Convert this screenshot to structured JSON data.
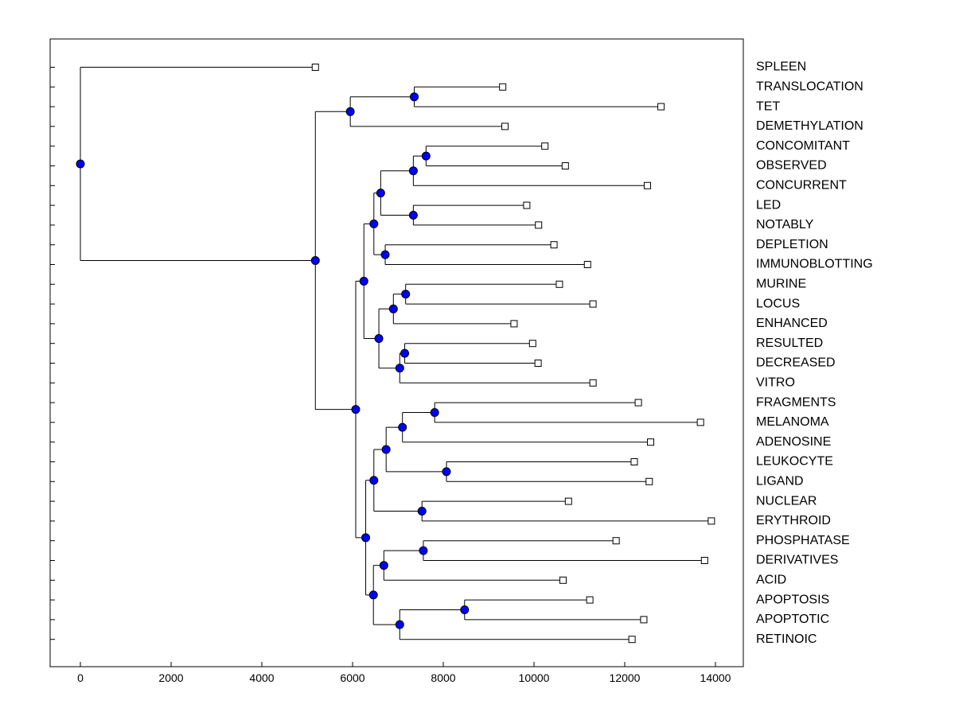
{
  "chart_data": {
    "type": "dendrogram",
    "title": "",
    "xlabel": "",
    "ylabel": "",
    "xlim": [
      -700,
      14700
    ],
    "x_ticks": [
      0,
      2000,
      4000,
      6000,
      8000,
      10000,
      12000,
      14000
    ],
    "x_tick_labels": [
      "0",
      "2000",
      "4000",
      "6000",
      "8000",
      "10000",
      "12000",
      "14000"
    ],
    "node_color": "#0000ff",
    "leaves": [
      {
        "label": "SPLEEN",
        "value": 5180
      },
      {
        "label": "TRANSLOCATION",
        "value": 9310
      },
      {
        "label": "TET",
        "value": 12800
      },
      {
        "label": "DEMETHYLATION",
        "value": 9360
      },
      {
        "label": "CONCOMITANT",
        "value": 10240
      },
      {
        "label": "OBSERVED",
        "value": 10690
      },
      {
        "label": "CONCURRENT",
        "value": 12500
      },
      {
        "label": "LED",
        "value": 9840
      },
      {
        "label": "NOTABLY",
        "value": 10100
      },
      {
        "label": "DEPLETION",
        "value": 10440
      },
      {
        "label": "IMMUNOBLOTTING",
        "value": 11180
      },
      {
        "label": "MURINE",
        "value": 10560
      },
      {
        "label": "LOCUS",
        "value": 11300
      },
      {
        "label": "ENHANCED",
        "value": 9560
      },
      {
        "label": "RESULTED",
        "value": 9970
      },
      {
        "label": "DECREASED",
        "value": 10090
      },
      {
        "label": "VITRO",
        "value": 11300
      },
      {
        "label": "FRAGMENTS",
        "value": 12300
      },
      {
        "label": "MELANOMA",
        "value": 13670
      },
      {
        "label": "ADENOSINE",
        "value": 12570
      },
      {
        "label": "LEUKOCYTE",
        "value": 12210
      },
      {
        "label": "LIGAND",
        "value": 12540
      },
      {
        "label": "NUCLEAR",
        "value": 10760
      },
      {
        "label": "ERYTHROID",
        "value": 13910
      },
      {
        "label": "PHOSPHATASE",
        "value": 11810
      },
      {
        "label": "DERIVATIVES",
        "value": 13760
      },
      {
        "label": "ACID",
        "value": 10640
      },
      {
        "label": "APOPTOSIS",
        "value": 11230
      },
      {
        "label": "APOPTOTIC",
        "value": 12420
      },
      {
        "label": "RETINOIC",
        "value": 12160
      }
    ],
    "merges": [
      {
        "id": "n1",
        "value": 7360,
        "children": [
          "TRANSLOCATION",
          "TET"
        ]
      },
      {
        "id": "n2",
        "value": 5950,
        "children": [
          "n1",
          "DEMETHYLATION"
        ]
      },
      {
        "id": "n3",
        "value": 7620,
        "children": [
          "CONCOMITANT",
          "OBSERVED"
        ]
      },
      {
        "id": "n4",
        "value": 7340,
        "children": [
          "n3",
          "CONCURRENT"
        ]
      },
      {
        "id": "n5",
        "value": 7340,
        "children": [
          "LED",
          "NOTABLY"
        ]
      },
      {
        "id": "n6",
        "value": 6620,
        "children": [
          "n4",
          "n5"
        ]
      },
      {
        "id": "n7",
        "value": 6720,
        "children": [
          "DEPLETION",
          "IMMUNOBLOTTING"
        ]
      },
      {
        "id": "n8",
        "value": 6470,
        "children": [
          "n6",
          "n7"
        ]
      },
      {
        "id": "n9",
        "value": 7170,
        "children": [
          "MURINE",
          "LOCUS"
        ]
      },
      {
        "id": "n10",
        "value": 6900,
        "children": [
          "n9",
          "ENHANCED"
        ]
      },
      {
        "id": "n11",
        "value": 7150,
        "children": [
          "RESULTED",
          "DECREASED"
        ]
      },
      {
        "id": "n12",
        "value": 7040,
        "children": [
          "n11",
          "VITRO"
        ]
      },
      {
        "id": "n13",
        "value": 6580,
        "children": [
          "n10",
          "n12"
        ]
      },
      {
        "id": "n14",
        "value": 6250,
        "children": [
          "n8",
          "n13"
        ]
      },
      {
        "id": "n15",
        "value": 7810,
        "children": [
          "FRAGMENTS",
          "MELANOMA"
        ]
      },
      {
        "id": "n16",
        "value": 7100,
        "children": [
          "n15",
          "ADENOSINE"
        ]
      },
      {
        "id": "n17",
        "value": 8070,
        "children": [
          "LEUKOCYTE",
          "LIGAND"
        ]
      },
      {
        "id": "n18",
        "value": 6740,
        "children": [
          "n16",
          "n17"
        ]
      },
      {
        "id": "n19",
        "value": 7530,
        "children": [
          "NUCLEAR",
          "ERYTHROID"
        ]
      },
      {
        "id": "n20",
        "value": 6470,
        "children": [
          "n18",
          "n19"
        ]
      },
      {
        "id": "n21",
        "value": 7560,
        "children": [
          "PHOSPHATASE",
          "DERIVATIVES"
        ]
      },
      {
        "id": "n22",
        "value": 6690,
        "children": [
          "n21",
          "ACID"
        ]
      },
      {
        "id": "n23",
        "value": 8470,
        "children": [
          "APOPTOSIS",
          "APOPTOTIC"
        ]
      },
      {
        "id": "n24",
        "value": 7040,
        "children": [
          "n23",
          "RETINOIC"
        ]
      },
      {
        "id": "n25",
        "value": 6460,
        "children": [
          "n22",
          "n24"
        ]
      },
      {
        "id": "n26",
        "value": 6290,
        "children": [
          "n20",
          "n25"
        ]
      },
      {
        "id": "n27",
        "value": 6070,
        "children": [
          "n14",
          "n26"
        ]
      },
      {
        "id": "n28",
        "value": 5180,
        "children": [
          "n2",
          "n27"
        ]
      },
      {
        "id": "root",
        "value": 0,
        "children": [
          "SPLEEN",
          "n28"
        ]
      }
    ]
  }
}
